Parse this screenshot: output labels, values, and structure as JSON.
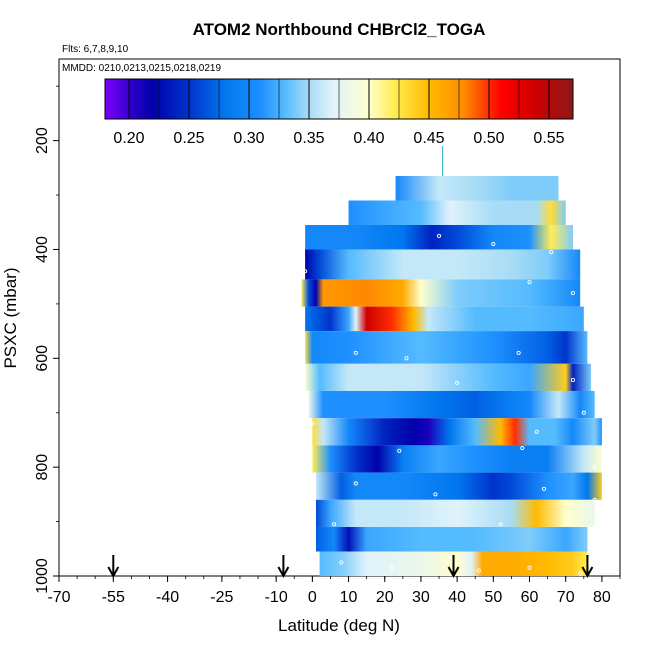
{
  "chart_data": {
    "type": "heatmap",
    "title": "ATOM2 Northbound CHBrCl2_TOGA",
    "flights_note": "Flts: 6,7,8,9,10",
    "dates_note": "MMDD: 0210,0213,0215,0218,0219",
    "xlabel": "Latitude (deg N)",
    "ylabel": "PSXC (mbar)",
    "xlim": [
      -70,
      85
    ],
    "ylim": [
      1000,
      50
    ],
    "x_ticks": [
      -70,
      -55,
      -40,
      -25,
      -10,
      0,
      10,
      20,
      30,
      40,
      50,
      60,
      70,
      80
    ],
    "y_ticks": [
      200,
      400,
      600,
      800,
      1000
    ],
    "colorbar": {
      "min": 0.18,
      "max": 0.57,
      "ticks": [
        0.2,
        0.25,
        0.3,
        0.35,
        0.4,
        0.45,
        0.5,
        0.55
      ],
      "tick_labels": [
        "0.20",
        "0.25",
        "0.30",
        "0.35",
        "0.40",
        "0.45",
        "0.50",
        "0.55"
      ],
      "color_stops": [
        {
          "v": 0.18,
          "c": "#7f00ff"
        },
        {
          "v": 0.2,
          "c": "#3300cc"
        },
        {
          "v": 0.22,
          "c": "#0000aa"
        },
        {
          "v": 0.25,
          "c": "#0033cc"
        },
        {
          "v": 0.28,
          "c": "#0077ee"
        },
        {
          "v": 0.31,
          "c": "#1e90ff"
        },
        {
          "v": 0.33,
          "c": "#55bbff"
        },
        {
          "v": 0.35,
          "c": "#a8dcf5"
        },
        {
          "v": 0.37,
          "c": "#e0f3fb"
        },
        {
          "v": 0.4,
          "c": "#ffffcc"
        },
        {
          "v": 0.42,
          "c": "#ffee55"
        },
        {
          "v": 0.45,
          "c": "#ffbb00"
        },
        {
          "v": 0.48,
          "c": "#ff8800"
        },
        {
          "v": 0.51,
          "c": "#ff0000"
        },
        {
          "v": 0.54,
          "c": "#cc0000"
        },
        {
          "v": 0.57,
          "c": "#8b1a1a"
        }
      ]
    },
    "profile_arrows_lat": [
      -55,
      -8,
      39,
      76
    ],
    "curtain_rows": [
      {
        "p_top": 265,
        "p_bot": 310,
        "lat_start": 23,
        "lat_end": 68,
        "stops": [
          [
            23,
            0.3
          ],
          [
            35,
            0.36
          ],
          [
            45,
            0.35
          ],
          [
            55,
            0.34
          ],
          [
            68,
            0.34
          ]
        ]
      },
      {
        "p_top": 310,
        "p_bot": 355,
        "lat_start": 10,
        "lat_end": 70,
        "stops": [
          [
            10,
            0.31
          ],
          [
            30,
            0.33
          ],
          [
            38,
            0.37
          ],
          [
            50,
            0.35
          ],
          [
            62,
            0.35
          ],
          [
            66,
            0.43
          ],
          [
            70,
            0.34
          ]
        ]
      },
      {
        "p_top": 355,
        "p_bot": 400,
        "lat_start": -2,
        "lat_end": 72,
        "stops": [
          [
            -2,
            0.3
          ],
          [
            12,
            0.3
          ],
          [
            25,
            0.28
          ],
          [
            33,
            0.24
          ],
          [
            40,
            0.26
          ],
          [
            50,
            0.3
          ],
          [
            60,
            0.31
          ],
          [
            66,
            0.42
          ],
          [
            72,
            0.34
          ]
        ]
      },
      {
        "p_top": 400,
        "p_bot": 455,
        "lat_start": -2,
        "lat_end": 74,
        "stops": [
          [
            -2,
            0.22
          ],
          [
            2,
            0.26
          ],
          [
            10,
            0.33
          ],
          [
            25,
            0.36
          ],
          [
            40,
            0.36
          ],
          [
            55,
            0.35
          ],
          [
            65,
            0.34
          ],
          [
            74,
            0.3
          ]
        ]
      },
      {
        "p_top": 455,
        "p_bot": 505,
        "lat_start": -3,
        "lat_end": 74,
        "stops": [
          [
            -3,
            0.42
          ],
          [
            -1,
            0.26
          ],
          [
            1,
            0.22
          ],
          [
            3,
            0.47
          ],
          [
            15,
            0.48
          ],
          [
            25,
            0.46
          ],
          [
            30,
            0.4
          ],
          [
            40,
            0.34
          ],
          [
            60,
            0.33
          ],
          [
            74,
            0.3
          ]
        ]
      },
      {
        "p_top": 505,
        "p_bot": 550,
        "lat_start": -2,
        "lat_end": 75,
        "stops": [
          [
            -2,
            0.28
          ],
          [
            5,
            0.25
          ],
          [
            10,
            0.32
          ],
          [
            12,
            0.37
          ],
          [
            15,
            0.54
          ],
          [
            22,
            0.5
          ],
          [
            28,
            0.45
          ],
          [
            32,
            0.36
          ],
          [
            45,
            0.33
          ],
          [
            60,
            0.33
          ],
          [
            75,
            0.32
          ]
        ]
      },
      {
        "p_top": 550,
        "p_bot": 610,
        "lat_start": -2,
        "lat_end": 76,
        "stops": [
          [
            -2,
            0.43
          ],
          [
            0,
            0.3
          ],
          [
            10,
            0.31
          ],
          [
            30,
            0.33
          ],
          [
            50,
            0.31
          ],
          [
            65,
            0.27
          ],
          [
            70,
            0.25
          ],
          [
            76,
            0.33
          ]
        ]
      },
      {
        "p_top": 610,
        "p_bot": 660,
        "lat_start": -2,
        "lat_end": 77,
        "stops": [
          [
            -2,
            0.4
          ],
          [
            2,
            0.33
          ],
          [
            10,
            0.36
          ],
          [
            30,
            0.36
          ],
          [
            50,
            0.33
          ],
          [
            60,
            0.32
          ],
          [
            70,
            0.44
          ],
          [
            72,
            0.24
          ],
          [
            77,
            0.34
          ]
        ]
      },
      {
        "p_top": 660,
        "p_bot": 710,
        "lat_start": -1,
        "lat_end": 78,
        "stops": [
          [
            -1,
            0.38
          ],
          [
            3,
            0.31
          ],
          [
            20,
            0.31
          ],
          [
            35,
            0.28
          ],
          [
            45,
            0.27
          ],
          [
            55,
            0.29
          ],
          [
            60,
            0.3
          ],
          [
            68,
            0.36
          ],
          [
            74,
            0.3
          ],
          [
            78,
            0.33
          ]
        ]
      },
      {
        "p_top": 710,
        "p_bot": 760,
        "lat_start": 0,
        "lat_end": 80,
        "stops": [
          [
            0,
            0.43
          ],
          [
            3,
            0.36
          ],
          [
            10,
            0.3
          ],
          [
            20,
            0.24
          ],
          [
            28,
            0.22
          ],
          [
            32,
            0.21
          ],
          [
            38,
            0.28
          ],
          [
            45,
            0.33
          ],
          [
            52,
            0.45
          ],
          [
            56,
            0.5
          ],
          [
            60,
            0.33
          ],
          [
            67,
            0.33
          ],
          [
            72,
            0.3
          ],
          [
            78,
            0.34
          ],
          [
            80,
            0.31
          ]
        ]
      },
      {
        "p_top": 760,
        "p_bot": 810,
        "lat_start": 0,
        "lat_end": 80,
        "stops": [
          [
            0,
            0.42
          ],
          [
            5,
            0.31
          ],
          [
            12,
            0.25
          ],
          [
            18,
            0.22
          ],
          [
            25,
            0.29
          ],
          [
            35,
            0.32
          ],
          [
            45,
            0.31
          ],
          [
            55,
            0.29
          ],
          [
            65,
            0.29
          ],
          [
            75,
            0.36
          ],
          [
            80,
            0.4
          ]
        ]
      },
      {
        "p_top": 810,
        "p_bot": 860,
        "lat_start": 1,
        "lat_end": 80,
        "stops": [
          [
            1,
            0.36
          ],
          [
            8,
            0.27
          ],
          [
            12,
            0.3
          ],
          [
            25,
            0.3
          ],
          [
            40,
            0.28
          ],
          [
            50,
            0.25
          ],
          [
            55,
            0.26
          ],
          [
            65,
            0.31
          ],
          [
            72,
            0.32
          ],
          [
            76,
            0.28
          ],
          [
            80,
            0.44
          ]
        ]
      },
      {
        "p_top": 860,
        "p_bot": 910,
        "lat_start": 1,
        "lat_end": 78,
        "stops": [
          [
            1,
            0.26
          ],
          [
            5,
            0.32
          ],
          [
            12,
            0.36
          ],
          [
            25,
            0.36
          ],
          [
            40,
            0.37
          ],
          [
            55,
            0.35
          ],
          [
            62,
            0.45
          ],
          [
            70,
            0.4
          ],
          [
            78,
            0.38
          ]
        ]
      },
      {
        "p_top": 910,
        "p_bot": 955,
        "lat_start": 1,
        "lat_end": 76,
        "stops": [
          [
            1,
            0.27
          ],
          [
            6,
            0.3
          ],
          [
            10,
            0.23
          ],
          [
            15,
            0.32
          ],
          [
            30,
            0.33
          ],
          [
            45,
            0.33
          ],
          [
            60,
            0.34
          ],
          [
            70,
            0.32
          ],
          [
            76,
            0.34
          ]
        ]
      },
      {
        "p_top": 955,
        "p_bot": 1000,
        "lat_start": 2,
        "lat_end": 76,
        "stops": [
          [
            2,
            0.33
          ],
          [
            8,
            0.34
          ],
          [
            15,
            0.37
          ],
          [
            30,
            0.38
          ],
          [
            40,
            0.4
          ],
          [
            44,
            0.37
          ],
          [
            47,
            0.46
          ],
          [
            55,
            0.46
          ],
          [
            65,
            0.45
          ],
          [
            72,
            0.44
          ],
          [
            76,
            0.42
          ]
        ]
      }
    ],
    "sample_points": [
      [
        35,
        375
      ],
      [
        50,
        390
      ],
      [
        66,
        405
      ],
      [
        -2,
        440
      ],
      [
        60,
        460
      ],
      [
        72,
        480
      ],
      [
        12,
        590
      ],
      [
        26,
        600
      ],
      [
        57,
        590
      ],
      [
        72,
        640
      ],
      [
        40,
        645
      ],
      [
        75,
        700
      ],
      [
        0,
        720
      ],
      [
        62,
        735
      ],
      [
        24,
        770
      ],
      [
        58,
        765
      ],
      [
        78,
        800
      ],
      [
        12,
        830
      ],
      [
        34,
        850
      ],
      [
        64,
        840
      ],
      [
        78,
        860
      ],
      [
        6,
        905
      ],
      [
        52,
        905
      ],
      [
        70,
        905
      ],
      [
        8,
        975
      ],
      [
        38,
        965
      ],
      [
        46,
        990
      ],
      [
        60,
        985
      ],
      [
        74,
        995
      ],
      [
        22,
        985
      ]
    ]
  }
}
